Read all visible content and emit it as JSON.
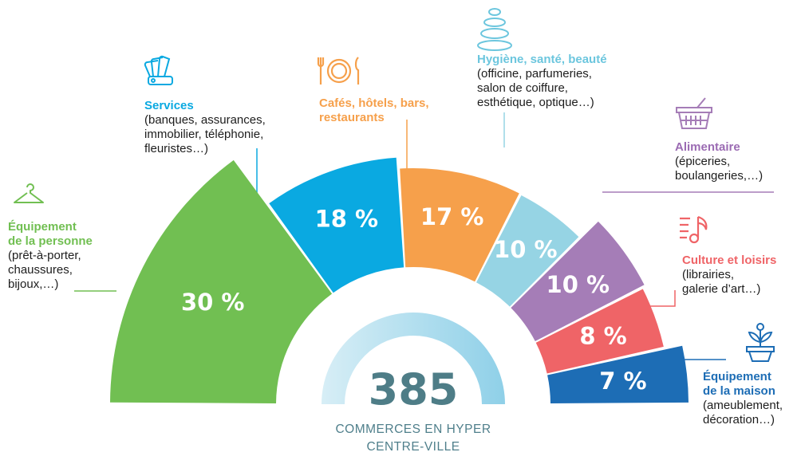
{
  "chart_data": {
    "type": "pie",
    "variant": "half-donut",
    "total": "385",
    "total_label_lines": [
      "COMMERCES EN HYPER",
      "CENTRE-VILLE"
    ],
    "categories": [
      {
        "title": [
          "Équipement",
          "de la personne"
        ],
        "desc": [
          "(prêt-à-porter,",
          "chaussures,",
          "bijoux,…)"
        ],
        "value": 30,
        "label": "30 %",
        "color": "#71bf52",
        "icon": "hanger-icon"
      },
      {
        "title": [
          "Services"
        ],
        "desc": [
          "(banques, assurances,",
          "immobilier, téléphonie,",
          "fleuristes…)"
        ],
        "value": 18,
        "label": "18 %",
        "color": "#0aa9e1",
        "icon": "card-fan-icon"
      },
      {
        "title": [
          "Cafés, hôtels, bars,",
          "restaurants"
        ],
        "desc": [],
        "value": 17,
        "label": "17 %",
        "color": "#f6a04b",
        "icon": "plate-cutlery-icon"
      },
      {
        "title": [
          "Hygiène, santé, beauté"
        ],
        "desc": [
          "(officine, parfumeries,",
          "salon de coiffure,",
          "esthétique, optique…)"
        ],
        "value": 10,
        "label": "10 %",
        "color": "#96d4e4",
        "icon": "zen-stones-icon"
      },
      {
        "title": [
          "Alimentaire"
        ],
        "desc": [
          "(épiceries,",
          "boulangeries,…)"
        ],
        "value": 10,
        "label": "10 %",
        "color": "#a57db7",
        "icon": "basket-icon"
      },
      {
        "title": [
          "Culture et loisirs"
        ],
        "desc": [
          "(librairies,",
          "galerie d’art…)"
        ],
        "value": 8,
        "label": "8 %",
        "color": "#ef6467",
        "icon": "music-note-icon"
      },
      {
        "title": [
          "Équipement",
          "de la maison"
        ],
        "desc": [
          "(ameublement,",
          "décoration…)"
        ],
        "value": 7,
        "label": "7 %",
        "color": "#1d6db5",
        "icon": "plant-pot-icon"
      }
    ]
  }
}
